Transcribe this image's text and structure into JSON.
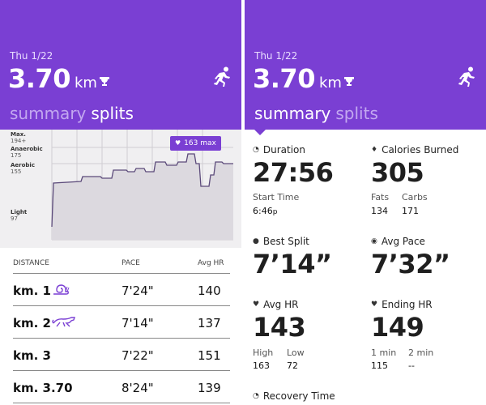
{
  "workout": {
    "date": "Thu 1/22",
    "distance": "3.70",
    "unit": "km"
  },
  "tabs": {
    "summary": "summary",
    "splits": "splits"
  },
  "chart": {
    "zones": [
      {
        "name": "Max.",
        "value": "194+"
      },
      {
        "name": "Anaerobic",
        "value": "175"
      },
      {
        "name": "Aerobic",
        "value": "155"
      },
      {
        "name": "Light",
        "value": "97"
      }
    ],
    "max_badge": "163 max"
  },
  "splits": {
    "headers": {
      "distance": "DISTANCE",
      "pace": "PACE",
      "hr": "Avg HR"
    },
    "rows": [
      {
        "distance": "km. 1",
        "pace": "7'24\"",
        "hr": "140",
        "icon": "snail-icon"
      },
      {
        "distance": "km. 2",
        "pace": "7'14\"",
        "hr": "137",
        "icon": "cheetah-icon"
      },
      {
        "distance": "km. 3",
        "pace": "7'22\"",
        "hr": "151",
        "icon": ""
      },
      {
        "distance": "km. 3.70",
        "pace": "8'24\"",
        "hr": "139",
        "icon": ""
      }
    ]
  },
  "summary": {
    "duration": {
      "label": "Duration",
      "value": "27:56",
      "start_label": "Start Time",
      "start_value": "6:46",
      "start_suffix": "p"
    },
    "calories": {
      "label": "Calories Burned",
      "value": "305",
      "fats_label": "Fats",
      "fats_value": "134",
      "carbs_label": "Carbs",
      "carbs_value": "171"
    },
    "best_split": {
      "label": "Best Split",
      "value": "7’14”"
    },
    "avg_pace": {
      "label": "Avg Pace",
      "value": "7’32”"
    },
    "avg_hr": {
      "label": "Avg HR",
      "value": "143",
      "high_label": "High",
      "high_value": "163",
      "low_label": "Low",
      "low_value": "72"
    },
    "ending_hr": {
      "label": "Ending HR",
      "value": "149",
      "min1_label": "1 min",
      "min1_value": "115",
      "min2_label": "2 min",
      "min2_value": "--"
    },
    "recovery": {
      "label": "Recovery Time"
    }
  },
  "colors": {
    "accent": "#7a3fd3",
    "chart_bg": "#f0eff1",
    "chart_fill": "#dcd9df"
  }
}
